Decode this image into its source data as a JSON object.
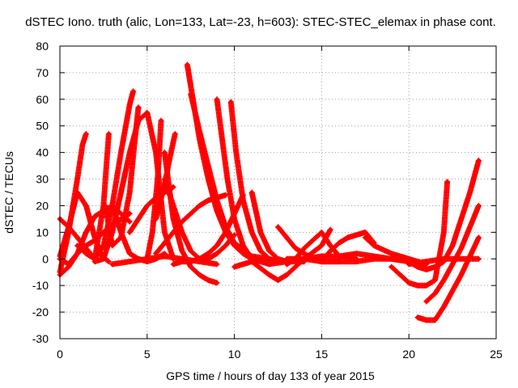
{
  "chart_data": {
    "type": "scatter",
    "title": "dSTEC Iono. truth (alic, Lon=133, Lat=-23, h=603): STEC-STEC_elemax in phase cont.",
    "xlabel": "GPS time / hours of day 133 of year 2015",
    "ylabel": "dSTEC  / TECUs",
    "xlim": [
      0,
      25
    ],
    "ylim": [
      -30,
      80
    ],
    "xticks": [
      0,
      5,
      10,
      15,
      20,
      25
    ],
    "yticks": [
      -30,
      -20,
      -10,
      0,
      10,
      20,
      30,
      40,
      50,
      60,
      70,
      80
    ],
    "grid": true,
    "marker": "+",
    "color": "#ff0000",
    "series": [
      {
        "x": [
          0.0,
          0.5,
          1.0,
          1.3,
          1.5
        ],
        "y": [
          -5,
          10,
          30,
          43,
          47
        ]
      },
      {
        "x": [
          0.0,
          0.5,
          1.0,
          1.5,
          2.0,
          2.4,
          2.8
        ],
        "y": [
          1,
          12,
          25,
          20,
          8,
          1,
          -1
        ]
      },
      {
        "x": [
          0.0,
          0.5,
          1.0,
          1.5,
          2.0,
          2.5,
          2.8
        ],
        "y": [
          15,
          12,
          8,
          4,
          0,
          20,
          47
        ]
      },
      {
        "x": [
          0.0,
          0.5,
          1.0,
          1.5,
          2.0,
          3.0,
          4.0
        ],
        "y": [
          0,
          -2,
          2,
          10,
          16,
          20,
          14
        ]
      },
      {
        "x": [
          0.0,
          0.5,
          1.0,
          1.5,
          2.0,
          2.5,
          3.0,
          3.5,
          4.0
        ],
        "y": [
          -6,
          -3,
          2,
          5,
          7,
          10,
          13,
          15,
          17
        ]
      },
      {
        "x": [
          1.0,
          1.5,
          2.0,
          2.5,
          3.0,
          3.5,
          4.0,
          4.2
        ],
        "y": [
          5,
          2,
          0,
          5,
          20,
          40,
          58,
          63
        ]
      },
      {
        "x": [
          2.0,
          2.5,
          3.0,
          3.5,
          4.0,
          4.5,
          5.0,
          5.5,
          6.0,
          6.5
        ],
        "y": [
          -1,
          0,
          10,
          25,
          40,
          52,
          55,
          40,
          10,
          0
        ]
      },
      {
        "x": [
          2.6,
          3.0,
          3.5,
          4.0,
          4.3,
          4.5
        ],
        "y": [
          20,
          5,
          8,
          25,
          45,
          57
        ]
      },
      {
        "x": [
          3.0,
          3.5,
          4.0,
          4.5,
          5.0,
          5.5,
          6.0
        ],
        "y": [
          20,
          10,
          2,
          0,
          -1,
          0,
          2
        ]
      },
      {
        "x": [
          3.0,
          4.0,
          5.0,
          6.0,
          7.0,
          8.0,
          9.0
        ],
        "y": [
          -2,
          -1,
          0,
          1,
          0,
          -1,
          -2
        ]
      },
      {
        "x": [
          4.0,
          4.5,
          5.0,
          5.5,
          6.0,
          6.5
        ],
        "y": [
          10,
          15,
          20,
          23,
          25,
          27
        ]
      },
      {
        "x": [
          5.0,
          5.3,
          5.6,
          5.8
        ],
        "y": [
          0,
          10,
          30,
          52
        ]
      },
      {
        "x": [
          5.5,
          6.0,
          6.3,
          6.6
        ],
        "y": [
          15,
          28,
          38,
          47
        ]
      },
      {
        "x": [
          6.0,
          6.5,
          7.0,
          7.5,
          8.0,
          8.5,
          9.0
        ],
        "y": [
          40,
          15,
          3,
          -3,
          -6,
          -8,
          -9
        ]
      },
      {
        "x": [
          5.5,
          6.0,
          6.5,
          7.0,
          7.5,
          8.0,
          8.5,
          9.0,
          9.5
        ],
        "y": [
          2,
          6,
          10,
          14,
          17,
          20,
          22,
          23,
          24
        ]
      },
      {
        "x": [
          6.0,
          6.5,
          7.0,
          7.5,
          8.0,
          8.5,
          9.0,
          9.5,
          10.0
        ],
        "y": [
          30,
          20,
          10,
          3,
          0,
          0,
          2,
          5,
          9
        ]
      },
      {
        "x": [
          7.3,
          7.5,
          8.0,
          8.5,
          9.0,
          9.5,
          10.0,
          10.5,
          11.0,
          12.0
        ],
        "y": [
          73,
          65,
          45,
          30,
          18,
          10,
          5,
          2,
          0,
          -1
        ]
      },
      {
        "x": [
          7.5,
          8.0,
          8.5,
          9.0,
          9.5,
          10.0,
          11.0,
          12.0
        ],
        "y": [
          62,
          48,
          35,
          22,
          12,
          6,
          1,
          0
        ]
      },
      {
        "x": [
          9.0,
          9.3,
          9.6,
          10.0,
          10.5,
          11.0,
          12.0
        ],
        "y": [
          60,
          45,
          30,
          15,
          5,
          0,
          -2
        ]
      },
      {
        "x": [
          9.8,
          10.1,
          10.5,
          11.0,
          11.5,
          12.0,
          12.5
        ],
        "y": [
          59,
          40,
          22,
          10,
          3,
          0,
          -1
        ]
      },
      {
        "x": [
          6.5,
          7.0,
          7.5,
          8.0,
          8.5,
          9.0,
          9.5,
          10.0,
          10.5
        ],
        "y": [
          -2,
          -1,
          -1,
          0,
          2,
          5,
          10,
          17,
          24
        ]
      },
      {
        "x": [
          11.0,
          11.5,
          12.0,
          12.5,
          13.0,
          14.0
        ],
        "y": [
          25,
          10,
          3,
          0,
          -1,
          -1
        ]
      },
      {
        "x": [
          10.0,
          11.0,
          12.0,
          12.5,
          13.0,
          14.0,
          15.0,
          15.5
        ],
        "y": [
          -3,
          -1,
          -6,
          -8,
          -6,
          0,
          5,
          11
        ]
      },
      {
        "x": [
          12.5,
          13.0,
          13.5,
          14.0,
          14.5,
          15.0,
          16.0
        ],
        "y": [
          12,
          8,
          4,
          2,
          0,
          -1,
          -1
        ]
      },
      {
        "x": [
          13.0,
          13.5,
          14.0,
          14.5,
          15.0,
          15.5,
          16.0,
          17.0
        ],
        "y": [
          -2,
          0,
          4,
          7,
          10,
          5,
          1,
          0
        ]
      },
      {
        "x": [
          15.0,
          15.5,
          16.0,
          16.5,
          17.0,
          17.5,
          18.0
        ],
        "y": [
          -1,
          3,
          6,
          8,
          9,
          10,
          6
        ]
      },
      {
        "x": [
          12.0,
          13.0,
          14.0,
          15.0,
          16.0,
          17.0,
          18.0,
          19.0,
          20.0
        ],
        "y": [
          -2,
          -1,
          0,
          1,
          1,
          2,
          1,
          0,
          -1
        ]
      },
      {
        "x": [
          13.0,
          14.0,
          15.0,
          16.0,
          17.0,
          18.0,
          19.0,
          20.0,
          20.5
        ],
        "y": [
          0,
          0,
          -1,
          -1,
          -1,
          0,
          0,
          -1,
          -2
        ]
      },
      {
        "x": [
          17.5,
          18.0,
          19.0,
          20.0,
          20.5,
          21.0
        ],
        "y": [
          8,
          5,
          2,
          0,
          -1,
          -2
        ]
      },
      {
        "x": [
          19.0,
          19.5,
          20.0,
          20.5,
          21.0,
          21.5,
          22.0,
          22.2
        ],
        "y": [
          -3,
          -6,
          -9,
          -10,
          -10,
          -8,
          10,
          29
        ]
      },
      {
        "x": [
          20.0,
          20.5,
          21.0,
          21.5,
          22.0,
          22.5,
          23.0,
          23.5,
          24.0
        ],
        "y": [
          -1,
          -3,
          -4,
          -3,
          -1,
          5,
          15,
          25,
          37
        ]
      },
      {
        "x": [
          21.0,
          21.5,
          22.0,
          22.5,
          23.0,
          23.5,
          24.0
        ],
        "y": [
          -16,
          -13,
          -8,
          -2,
          4,
          12,
          20
        ]
      },
      {
        "x": [
          20.5,
          21.0,
          21.5,
          22.0,
          22.5,
          23.0,
          23.5,
          24.0
        ],
        "y": [
          -22,
          -23,
          -23,
          -18,
          -12,
          -6,
          1,
          8
        ]
      },
      {
        "x": [
          20.0,
          21.0,
          22.0,
          23.0,
          24.0
        ],
        "y": [
          -2,
          -1,
          0,
          0,
          0
        ]
      }
    ]
  }
}
